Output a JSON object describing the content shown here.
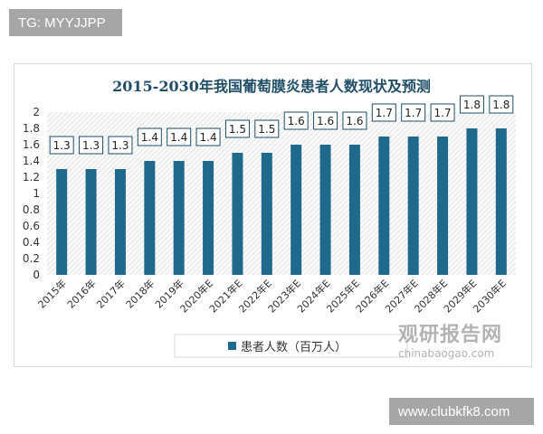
{
  "watermarks": {
    "top_left": "TG: MYYJJPP",
    "bottom_right": "www.clubkfk8.com",
    "logo": "观研报告网 chinabaogao.com"
  },
  "chart_data": {
    "type": "bar",
    "title": "2015-2030年我国葡萄膜炎患者人数现状及预测",
    "categories": [
      "2015年",
      "2016年",
      "2017年",
      "2018年",
      "2019年",
      "2020年E",
      "2021年E",
      "2022年E",
      "2023年E",
      "2024年E",
      "2025年E",
      "2026年E",
      "2027年E",
      "2028年E",
      "2029年E",
      "2030年E"
    ],
    "series": [
      {
        "name": "患者人数（百万人）",
        "values": [
          1.3,
          1.3,
          1.3,
          1.4,
          1.4,
          1.4,
          1.5,
          1.5,
          1.6,
          1.6,
          1.6,
          1.7,
          1.7,
          1.7,
          1.8,
          1.8
        ]
      }
    ],
    "ylim": [
      0,
      2
    ],
    "yticks": [
      "0",
      "0.2",
      "0.4",
      "0.6",
      "0.8",
      "1",
      "1.2",
      "1.4",
      "1.6",
      "1.8",
      "2"
    ],
    "legend_position": "bottom",
    "colors": {
      "bar": "#1f6a8c",
      "title": "#1f4e66",
      "plot_hatch": "#d9d9d9"
    },
    "grid": false
  }
}
